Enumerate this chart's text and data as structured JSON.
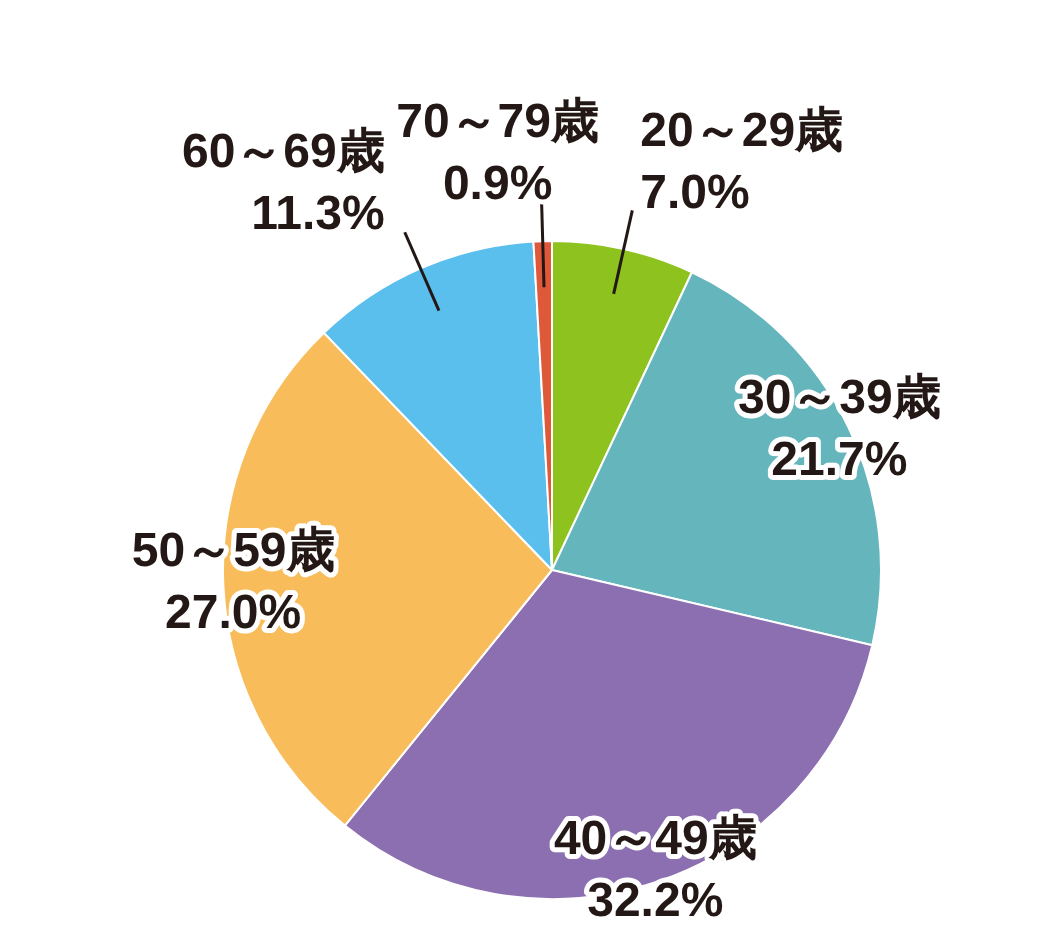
{
  "chart_data": {
    "type": "pie",
    "categories": [
      "20～29歳",
      "30～39歳",
      "40～49歳",
      "50～59歳",
      "60～69歳",
      "70～79歳"
    ],
    "values": [
      7.0,
      21.7,
      32.2,
      27.0,
      11.3,
      0.9
    ],
    "value_labels": [
      "7.0%",
      "21.7%",
      "32.2%",
      "27.0%",
      "11.3%",
      "0.9%"
    ],
    "colors": [
      "#8dc21f",
      "#65b5bd",
      "#8b6fb0",
      "#f8bd5a",
      "#5bbfee",
      "#e0583a"
    ],
    "legend": false
  }
}
